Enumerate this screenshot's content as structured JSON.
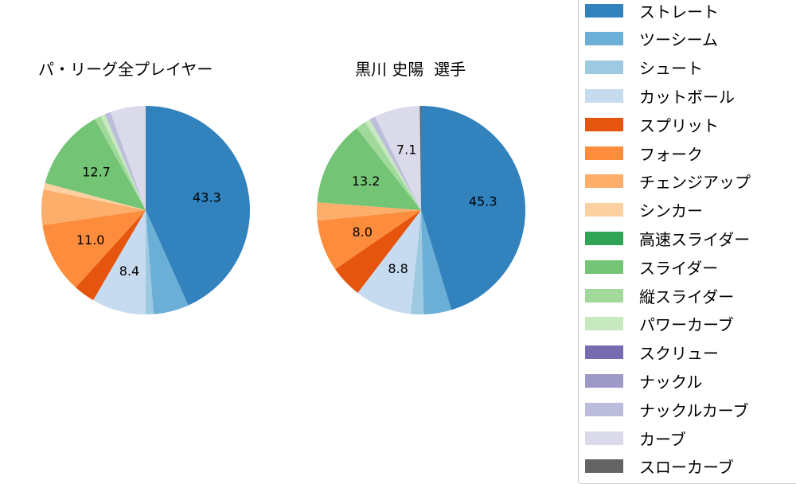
{
  "chart_data": [
    {
      "type": "pie",
      "title": "パ・リーグ全プレイヤー",
      "categories": [
        "ストレート",
        "ツーシーム",
        "シュート",
        "カットボール",
        "スプリット",
        "フォーク",
        "チェンジアップ",
        "シンカー",
        "高速スライダー",
        "スライダー",
        "縦スライダー",
        "パワーカーブ",
        "スクリュー",
        "ナックル",
        "ナックルカーブ",
        "カーブ",
        "スローカーブ"
      ],
      "values": [
        43.3,
        5.5,
        1.2,
        8.4,
        3.3,
        11.0,
        5.5,
        1.0,
        0.0,
        12.7,
        1.0,
        0.7,
        0.0,
        0.0,
        0.9,
        5.5,
        0.0
      ],
      "labels_shown": [
        "43.3",
        "8.4",
        "11.0",
        "12.7"
      ],
      "start_angle": 90,
      "direction": "clockwise"
    },
    {
      "type": "pie",
      "title": "黒川 史陽  選手",
      "categories": [
        "ストレート",
        "ツーシーム",
        "シュート",
        "カットボール",
        "スプリット",
        "フォーク",
        "チェンジアップ",
        "シンカー",
        "高速スライダー",
        "スライダー",
        "縦スライダー",
        "パワーカーブ",
        "スクリュー",
        "ナックル",
        "ナックルカーブ",
        "カーブ",
        "スローカーブ"
      ],
      "values": [
        45.3,
        4.3,
        2.0,
        8.8,
        5.0,
        8.0,
        2.8,
        0.0,
        0.0,
        13.2,
        1.6,
        0.8,
        0.0,
        0.0,
        0.9,
        7.1,
        0.2
      ],
      "labels_shown": [
        "45.3",
        "8.8",
        "8.0",
        "13.2",
        "7.1"
      ],
      "start_angle": 90,
      "direction": "clockwise"
    }
  ],
  "legend": {
    "position": "right",
    "items": [
      {
        "label": "ストレート",
        "color": "#3182bd"
      },
      {
        "label": "ツーシーム",
        "color": "#6baed6"
      },
      {
        "label": "シュート",
        "color": "#9ecae1"
      },
      {
        "label": "カットボール",
        "color": "#c6dbef"
      },
      {
        "label": "スプリット",
        "color": "#e6550d"
      },
      {
        "label": "フォーク",
        "color": "#fd8d3c"
      },
      {
        "label": "チェンジアップ",
        "color": "#fdae6b"
      },
      {
        "label": "シンカー",
        "color": "#fdd0a2"
      },
      {
        "label": "高速スライダー",
        "color": "#31a354"
      },
      {
        "label": "スライダー",
        "color": "#74c476"
      },
      {
        "label": "縦スライダー",
        "color": "#a1d99b"
      },
      {
        "label": "パワーカーブ",
        "color": "#c7e9c0"
      },
      {
        "label": "スクリュー",
        "color": "#756bb1"
      },
      {
        "label": "ナックル",
        "color": "#9e9ac8"
      },
      {
        "label": "ナックルカーブ",
        "color": "#bcbddc"
      },
      {
        "label": "カーブ",
        "color": "#dadaeb"
      },
      {
        "label": "スローカーブ",
        "color": "#636363"
      }
    ]
  },
  "titles": {
    "left": "パ・リーグ全プレイヤー",
    "right": "黒川 史陽  選手"
  }
}
